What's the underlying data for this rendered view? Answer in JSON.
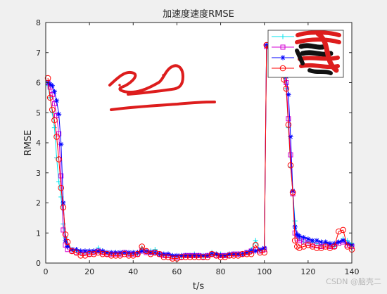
{
  "watermark": "CSDN @脑壳二",
  "chart_data": {
    "type": "line",
    "title": "加速度速度RMSE",
    "xlabel": "t/s",
    "ylabel": "RMSE",
    "xlim": [
      0,
      140
    ],
    "ylim": [
      0,
      8
    ],
    "xticks": [
      "0",
      "20",
      "40",
      "60",
      "80",
      "100",
      "120",
      "140"
    ],
    "yticks": [
      "0",
      "1",
      "2",
      "3",
      "4",
      "5",
      "6",
      "7",
      "8"
    ],
    "grid": false,
    "legend_position": "top-right",
    "annotations": [
      "red freehand scribble (redaction) at upper-left of plot",
      "legend labels obscured by red/black scribble"
    ],
    "series": [
      {
        "color": "#00e5ee",
        "marker": "+",
        "x": [
          1,
          2,
          3,
          4,
          5,
          6,
          7,
          8,
          9,
          10,
          12,
          14,
          16,
          18,
          20,
          22,
          24,
          26,
          28,
          30,
          32,
          34,
          36,
          38,
          40,
          42,
          44,
          46,
          48,
          50,
          52,
          54,
          56,
          58,
          60,
          62,
          64,
          66,
          68,
          70,
          72,
          74,
          76,
          78,
          80,
          82,
          84,
          86,
          88,
          90,
          92,
          94,
          96,
          98,
          100,
          101,
          109,
          110,
          111,
          112,
          113,
          114,
          115,
          116,
          118,
          120,
          122,
          124,
          126,
          128,
          130,
          132,
          134,
          136,
          138,
          140
        ],
        "y": [
          5.9,
          5.5,
          5.0,
          4.5,
          3.5,
          2.7,
          2.2,
          1.3,
          0.85,
          0.6,
          0.45,
          0.4,
          0.35,
          0.35,
          0.35,
          0.4,
          0.5,
          0.4,
          0.35,
          0.3,
          0.35,
          0.3,
          0.35,
          0.3,
          0.3,
          0.3,
          0.5,
          0.35,
          0.4,
          0.45,
          0.3,
          0.25,
          0.3,
          0.25,
          0.2,
          0.2,
          0.25,
          0.25,
          0.3,
          0.25,
          0.2,
          0.25,
          0.35,
          0.3,
          0.3,
          0.25,
          0.25,
          0.3,
          0.3,
          0.3,
          0.35,
          0.45,
          0.75,
          0.4,
          0.45,
          7.2,
          6.2,
          5.8,
          4.5,
          3.2,
          2.4,
          1.4,
          0.9,
          0.8,
          0.7,
          0.7,
          0.7,
          0.65,
          0.6,
          0.65,
          0.6,
          0.55,
          0.7,
          0.8,
          0.75,
          0.65
        ]
      },
      {
        "color": "#d400d4",
        "marker": "square",
        "x": [
          1,
          2,
          3,
          4,
          5,
          6,
          7,
          8,
          9,
          10,
          12,
          14,
          16,
          18,
          20,
          22,
          24,
          26,
          28,
          30,
          32,
          34,
          36,
          38,
          40,
          42,
          44,
          46,
          48,
          50,
          52,
          54,
          56,
          58,
          60,
          62,
          64,
          66,
          68,
          70,
          72,
          74,
          76,
          78,
          80,
          82,
          84,
          86,
          88,
          90,
          92,
          94,
          96,
          98,
          100,
          101,
          109,
          110,
          111,
          112,
          113,
          114,
          115,
          116,
          118,
          120,
          122,
          124,
          126,
          128,
          130,
          132,
          134,
          136,
          138,
          140
        ],
        "y": [
          6.0,
          5.85,
          5.6,
          5.3,
          4.9,
          4.3,
          2.9,
          1.1,
          0.6,
          0.45,
          0.4,
          0.35,
          0.35,
          0.35,
          0.3,
          0.35,
          0.4,
          0.35,
          0.3,
          0.3,
          0.3,
          0.3,
          0.35,
          0.3,
          0.3,
          0.3,
          0.4,
          0.35,
          0.35,
          0.35,
          0.3,
          0.25,
          0.25,
          0.2,
          0.2,
          0.2,
          0.25,
          0.25,
          0.25,
          0.25,
          0.2,
          0.25,
          0.3,
          0.25,
          0.25,
          0.25,
          0.25,
          0.3,
          0.3,
          0.3,
          0.35,
          0.4,
          0.45,
          0.4,
          0.45,
          7.2,
          6.3,
          6.0,
          4.8,
          3.6,
          2.3,
          1.0,
          0.8,
          0.75,
          0.7,
          0.65,
          0.6,
          0.6,
          0.55,
          0.6,
          0.55,
          0.55,
          0.65,
          0.7,
          0.6,
          0.55
        ]
      },
      {
        "color": "#0000ff",
        "marker": "asterisk",
        "x": [
          1,
          2,
          3,
          4,
          5,
          6,
          7,
          8,
          9,
          10,
          12,
          14,
          16,
          18,
          20,
          22,
          24,
          26,
          28,
          30,
          32,
          34,
          36,
          38,
          40,
          42,
          44,
          46,
          48,
          50,
          52,
          54,
          56,
          58,
          60,
          62,
          64,
          66,
          68,
          70,
          72,
          74,
          76,
          78,
          80,
          82,
          84,
          86,
          88,
          90,
          92,
          94,
          96,
          98,
          100,
          101,
          109,
          110,
          111,
          112,
          113,
          114,
          115,
          116,
          118,
          120,
          122,
          124,
          126,
          128,
          130,
          132,
          134,
          136,
          138,
          140
        ],
        "y": [
          6.0,
          5.95,
          5.9,
          5.7,
          5.4,
          4.95,
          3.95,
          2.0,
          0.75,
          0.55,
          0.45,
          0.45,
          0.4,
          0.4,
          0.4,
          0.4,
          0.4,
          0.4,
          0.35,
          0.35,
          0.35,
          0.35,
          0.35,
          0.35,
          0.35,
          0.35,
          0.4,
          0.4,
          0.35,
          0.35,
          0.3,
          0.3,
          0.3,
          0.25,
          0.25,
          0.25,
          0.25,
          0.25,
          0.25,
          0.25,
          0.25,
          0.25,
          0.3,
          0.3,
          0.25,
          0.25,
          0.3,
          0.3,
          0.3,
          0.3,
          0.35,
          0.4,
          0.4,
          0.45,
          0.5,
          7.25,
          6.4,
          6.2,
          5.6,
          4.2,
          2.4,
          1.2,
          0.95,
          0.9,
          0.85,
          0.8,
          0.75,
          0.75,
          0.7,
          0.7,
          0.65,
          0.65,
          0.7,
          0.75,
          0.65,
          0.6
        ]
      },
      {
        "color": "#ff0000",
        "marker": "circle",
        "x": [
          1,
          2,
          3,
          4,
          5,
          6,
          7,
          8,
          9,
          10,
          12,
          14,
          16,
          18,
          20,
          22,
          24,
          26,
          28,
          30,
          32,
          34,
          36,
          38,
          40,
          42,
          44,
          46,
          48,
          50,
          52,
          54,
          56,
          58,
          60,
          62,
          64,
          66,
          68,
          70,
          72,
          74,
          76,
          78,
          80,
          82,
          84,
          86,
          88,
          90,
          92,
          94,
          96,
          98,
          100,
          101,
          109,
          110,
          111,
          112,
          113,
          114,
          115,
          116,
          118,
          120,
          122,
          124,
          126,
          128,
          130,
          132,
          134,
          136,
          138,
          140
        ],
        "y": [
          6.15,
          5.5,
          5.1,
          4.75,
          4.2,
          3.45,
          2.5,
          1.85,
          0.95,
          0.7,
          0.4,
          0.35,
          0.25,
          0.25,
          0.3,
          0.3,
          0.35,
          0.3,
          0.3,
          0.25,
          0.25,
          0.25,
          0.3,
          0.25,
          0.25,
          0.3,
          0.55,
          0.4,
          0.3,
          0.35,
          0.3,
          0.2,
          0.2,
          0.15,
          0.15,
          0.2,
          0.2,
          0.2,
          0.2,
          0.2,
          0.2,
          0.2,
          0.3,
          0.25,
          0.2,
          0.2,
          0.25,
          0.25,
          0.25,
          0.3,
          0.3,
          0.3,
          0.6,
          0.35,
          0.35,
          7.25,
          6.1,
          5.8,
          4.6,
          3.25,
          2.35,
          0.75,
          0.55,
          0.5,
          0.55,
          0.6,
          0.55,
          0.5,
          0.5,
          0.55,
          0.5,
          0.55,
          1.05,
          1.1,
          0.55,
          0.45
        ]
      }
    ]
  }
}
